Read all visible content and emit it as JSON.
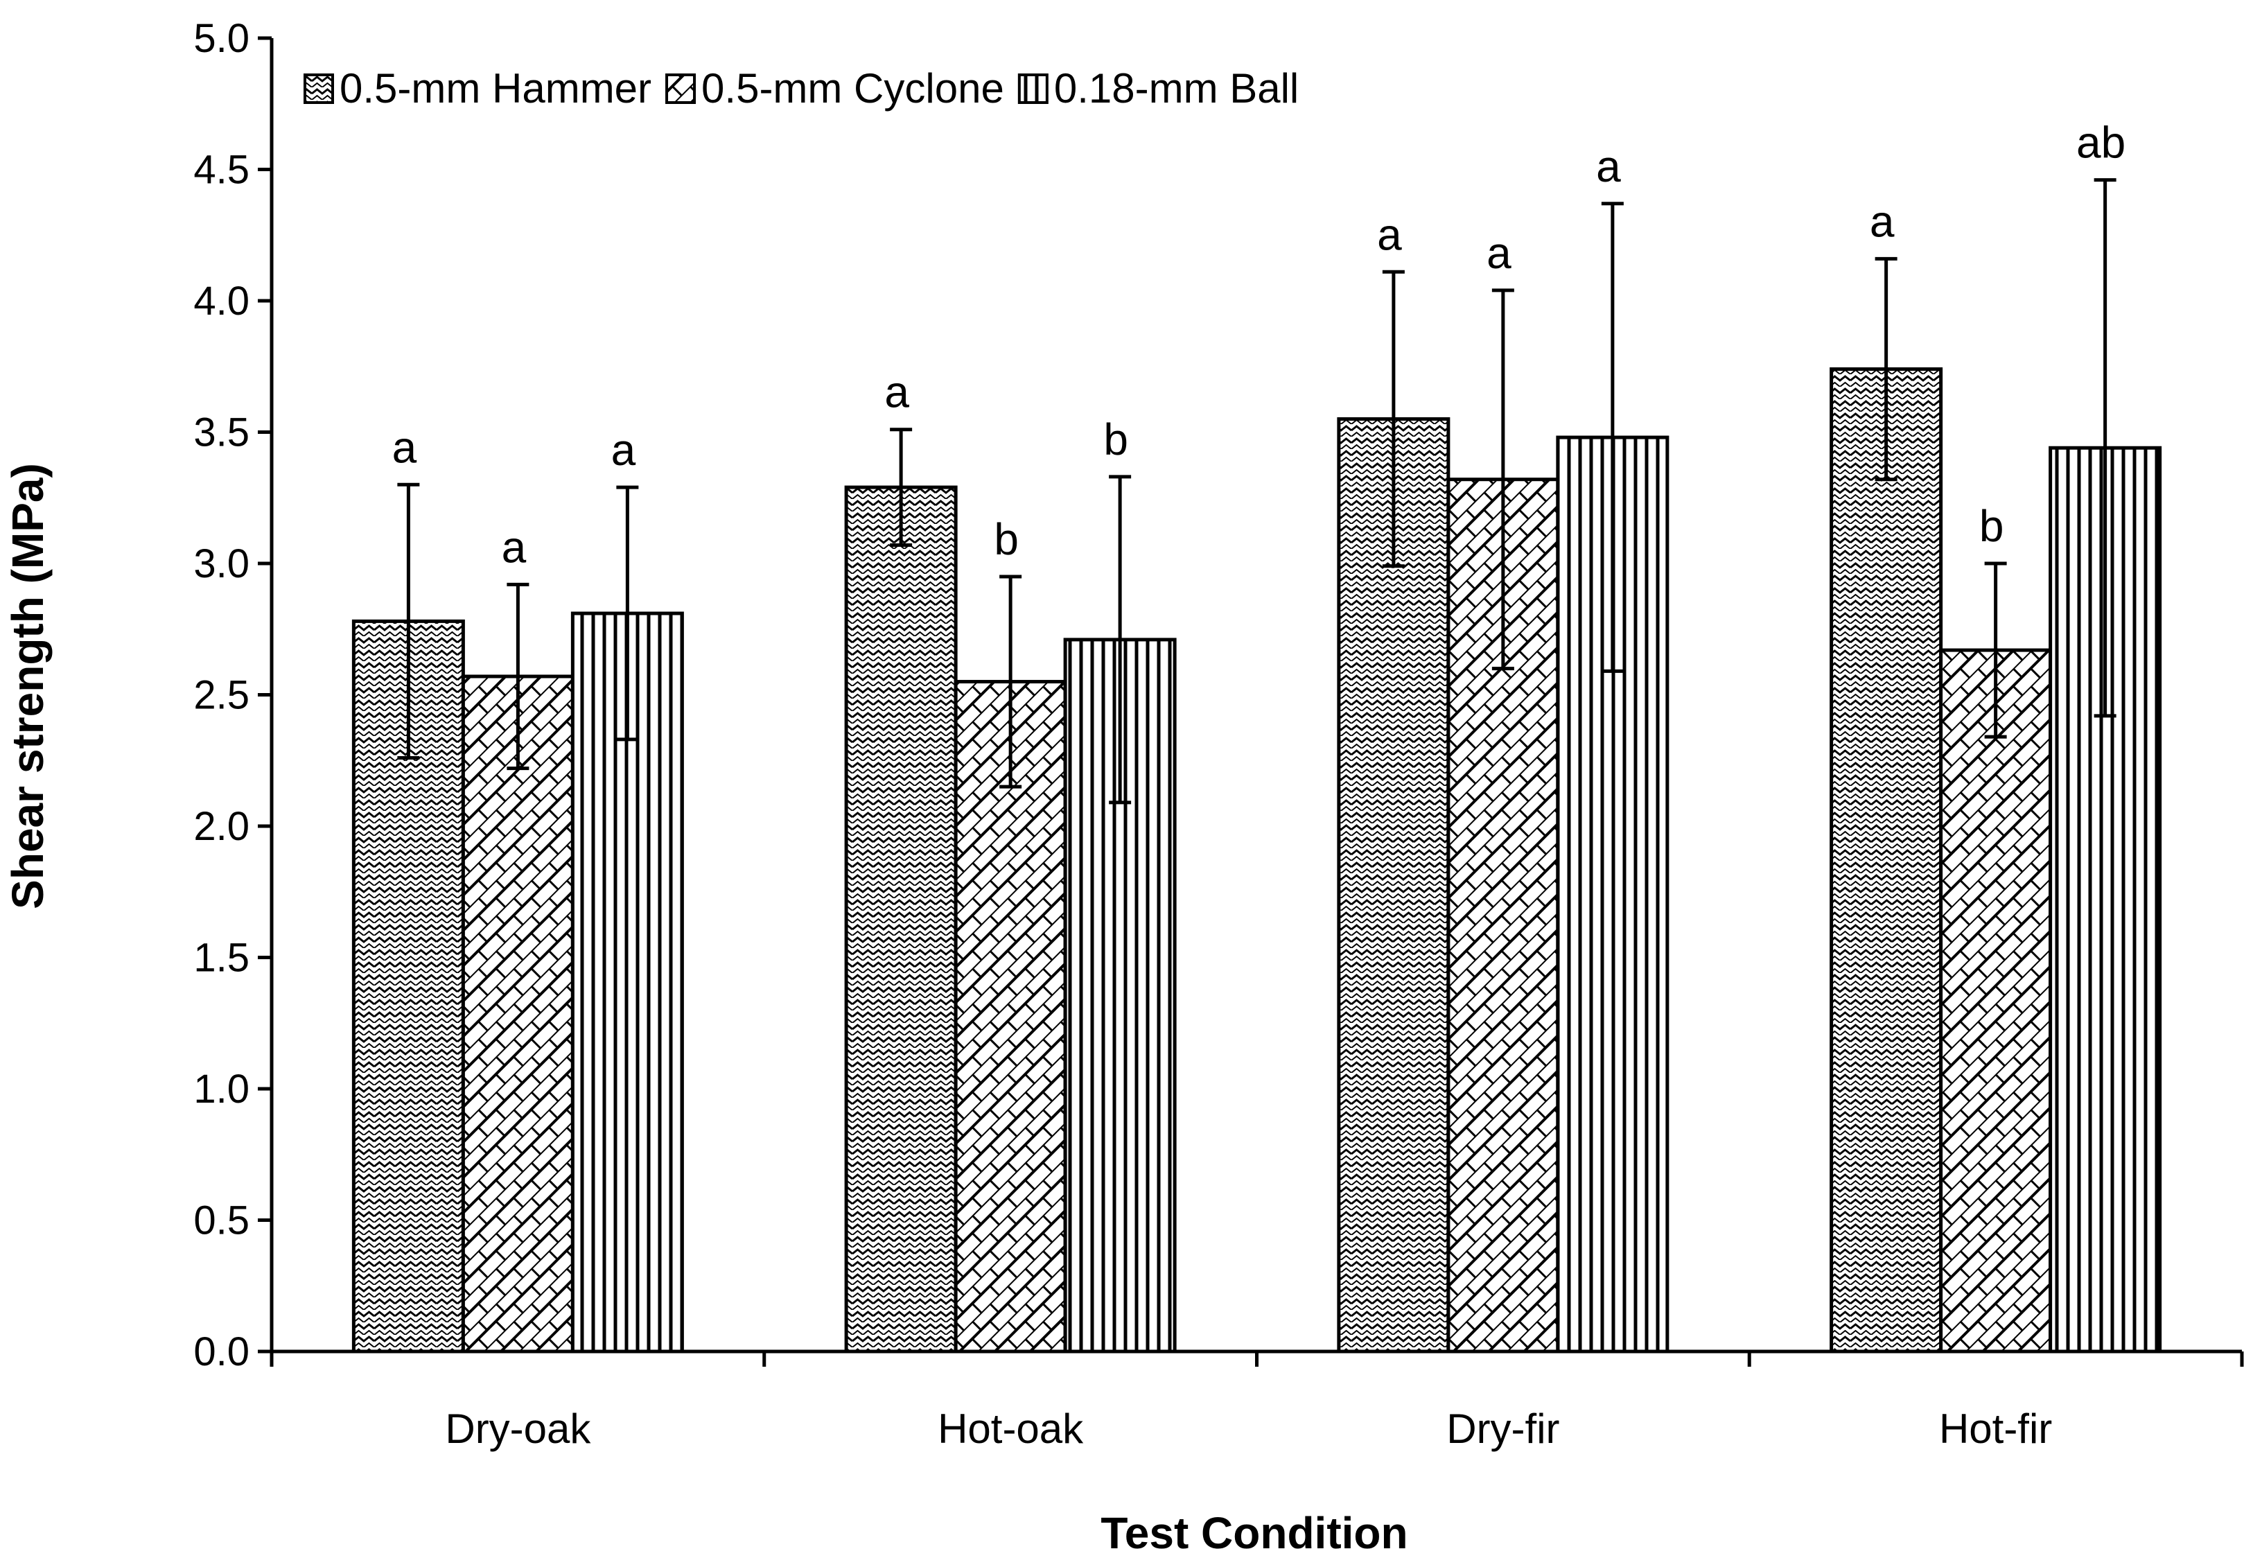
{
  "chart_data": {
    "type": "bar",
    "title": "",
    "xlabel": "Test Condition",
    "ylabel": "Shear strength (MPa)",
    "ylim": [
      0,
      5.0
    ],
    "ytick_step": 0.5,
    "ytick_labels": [
      "0.0",
      "0.5",
      "1.0",
      "1.5",
      "2.0",
      "2.5",
      "3.0",
      "3.5",
      "4.0",
      "4.5",
      "5.0"
    ],
    "categories": [
      "Dry-oak",
      "Hot-oak",
      "Dry-fir",
      "Hot-fir"
    ],
    "legend_position": "top-left",
    "series": [
      {
        "name": "0.5-mm Hammer",
        "pattern": "wave",
        "values": [
          2.78,
          3.29,
          3.55,
          3.74
        ],
        "errors": [
          0.52,
          0.22,
          0.56,
          0.42
        ],
        "letters": [
          "a",
          "a",
          "a",
          "a"
        ]
      },
      {
        "name": "0.5-mm Cyclone",
        "pattern": "diagonal-brick",
        "values": [
          2.57,
          2.55,
          3.32,
          2.67
        ],
        "errors": [
          0.35,
          0.4,
          0.72,
          0.33
        ],
        "letters": [
          "a",
          "b",
          "a",
          "b"
        ]
      },
      {
        "name": "0.18-mm Ball",
        "pattern": "vertical-lines",
        "values": [
          2.81,
          2.71,
          3.48,
          3.44
        ],
        "errors": [
          0.48,
          0.62,
          0.89,
          1.02
        ],
        "letters": [
          "a",
          "b",
          "a",
          "ab"
        ]
      }
    ],
    "colors": {
      "stroke": "#000000",
      "fill": "#ffffff"
    }
  }
}
